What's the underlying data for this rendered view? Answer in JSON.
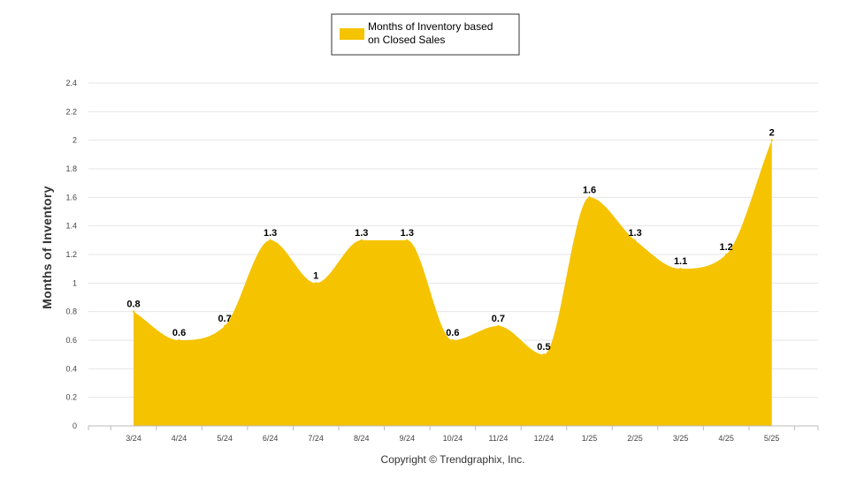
{
  "chart_data": {
    "type": "area",
    "categories": [
      "3/24",
      "4/24",
      "5/24",
      "6/24",
      "7/24",
      "8/24",
      "9/24",
      "10/24",
      "11/24",
      "12/24",
      "1/25",
      "2/25",
      "3/25",
      "4/25",
      "5/25"
    ],
    "series": [
      {
        "name": "Months of Inventory based on Closed Sales",
        "values": [
          0.8,
          0.6,
          0.7,
          1.3,
          1.0,
          1.3,
          1.3,
          0.6,
          0.7,
          0.5,
          1.6,
          1.3,
          1.1,
          1.2,
          2.0
        ],
        "data_labels": [
          "0.8",
          "0.6",
          "0.7",
          "1.3",
          "1",
          "1.3",
          "1.3",
          "0.6",
          "0.7",
          "0.5",
          "1.6",
          "1.3",
          "1.1",
          "1.2",
          "2"
        ]
      }
    ],
    "legend": {
      "lines": [
        "Months of Inventory based",
        "on Closed Sales"
      ],
      "position": "top-center"
    },
    "ylabel": "Months of Inventory",
    "ylim": [
      0,
      2.4
    ],
    "y_ticks": [
      "0",
      "0.2",
      "0.4",
      "0.6",
      "0.8",
      "1",
      "1.2",
      "1.4",
      "1.6",
      "1.8",
      "2",
      "2.2",
      "2.4"
    ],
    "grid": true,
    "colors": {
      "fill": "#F5C300",
      "grid": "#e6e6e6",
      "axis": "#bbbbbb"
    }
  },
  "footer": {
    "copyright": "Copyright © Trendgraphix, Inc."
  }
}
